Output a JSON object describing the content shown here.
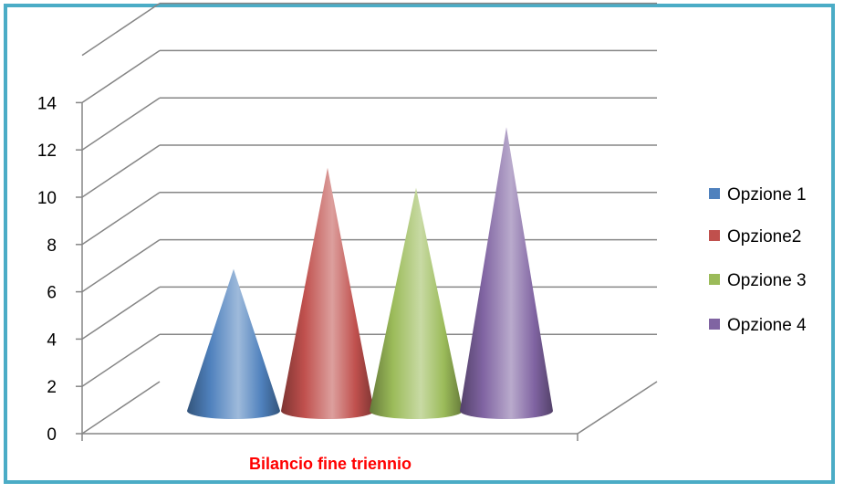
{
  "chart_data": {
    "type": "bar",
    "style": "3d-cone",
    "categories": [
      "Bilancio fine triennio"
    ],
    "series": [
      {
        "name": "Opzione 1",
        "values": [
          7
        ],
        "color": "#4F81BD"
      },
      {
        "name": "Opzione2",
        "values": [
          12
        ],
        "color": "#C0504D"
      },
      {
        "name": "Opzione 3",
        "values": [
          11
        ],
        "color": "#9BBB59"
      },
      {
        "name": "Opzione 4",
        "values": [
          14
        ],
        "color": "#8064A2"
      }
    ],
    "title": "",
    "xlabel": "",
    "ylabel": "",
    "ylim": [
      0,
      14
    ],
    "yticks": [
      "0",
      "2",
      "4",
      "6",
      "8",
      "10",
      "12",
      "14"
    ],
    "grid": true,
    "legend": "right"
  }
}
